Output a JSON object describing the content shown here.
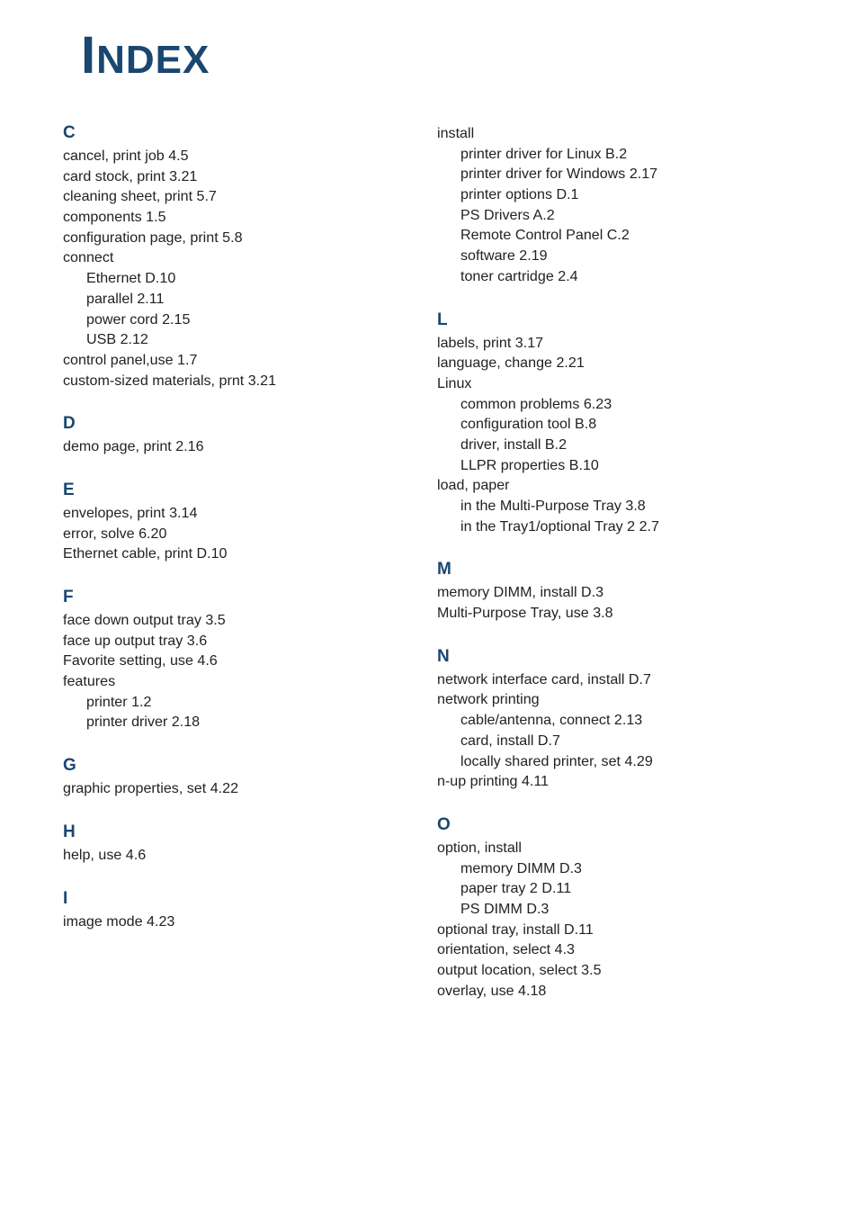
{
  "title_first": "I",
  "title_rest": "NDEX",
  "left": [
    {
      "letter": "C",
      "lines": [
        {
          "cls": "entry-top",
          "t": "cancel, print job 4.5"
        },
        {
          "cls": "entry-top",
          "t": "card stock, print 3.21"
        },
        {
          "cls": "entry-top",
          "t": "cleaning sheet, print 5.7"
        },
        {
          "cls": "entry-top",
          "t": "components 1.5"
        },
        {
          "cls": "entry-top",
          "t": "configuration page, print 5.8"
        },
        {
          "cls": "entry-top",
          "t": "connect"
        },
        {
          "cls": "entry-sub",
          "t": "Ethernet D.10"
        },
        {
          "cls": "entry-sub",
          "t": "parallel 2.11"
        },
        {
          "cls": "entry-sub",
          "t": "power cord 2.15"
        },
        {
          "cls": "entry-sub",
          "t": "USB 2.12"
        },
        {
          "cls": "entry-top",
          "t": "control panel,use 1.7"
        },
        {
          "cls": "entry-top",
          "t": "custom-sized materials, prnt 3.21"
        }
      ]
    },
    {
      "letter": "D",
      "lines": [
        {
          "cls": "entry-top",
          "t": "demo page, print 2.16"
        }
      ]
    },
    {
      "letter": "E",
      "lines": [
        {
          "cls": "entry-top",
          "t": "envelopes, print 3.14"
        },
        {
          "cls": "entry-top",
          "t": "error, solve 6.20"
        },
        {
          "cls": "entry-top",
          "t": "Ethernet cable, print D.10"
        }
      ]
    },
    {
      "letter": "F",
      "lines": [
        {
          "cls": "entry-top",
          "t": "face down output tray 3.5"
        },
        {
          "cls": "entry-top",
          "t": "face up output tray 3.6"
        },
        {
          "cls": "entry-top",
          "t": "Favorite setting, use 4.6"
        },
        {
          "cls": "entry-top",
          "t": "features"
        },
        {
          "cls": "entry-sub",
          "t": "printer 1.2"
        },
        {
          "cls": "entry-sub",
          "t": "printer driver 2.18"
        }
      ]
    },
    {
      "letter": "G",
      "lines": [
        {
          "cls": "entry-top",
          "t": "graphic properties, set 4.22"
        }
      ]
    },
    {
      "letter": "H",
      "lines": [
        {
          "cls": "entry-top",
          "t": "help, use 4.6"
        }
      ]
    },
    {
      "letter": "I",
      "lines": [
        {
          "cls": "entry-top",
          "t": "image mode 4.23"
        }
      ]
    }
  ],
  "right": [
    {
      "letter": "",
      "lines": [
        {
          "cls": "entry-top",
          "t": "install"
        },
        {
          "cls": "entry-sub",
          "t": "printer driver for Linux B.2"
        },
        {
          "cls": "entry-sub",
          "t": "printer driver for Windows 2.17"
        },
        {
          "cls": "entry-sub",
          "t": "printer options D.1"
        },
        {
          "cls": "entry-sub",
          "t": "PS Drivers A.2"
        },
        {
          "cls": "entry-sub",
          "t": "Remote Control Panel C.2"
        },
        {
          "cls": "entry-sub",
          "t": "software 2.19"
        },
        {
          "cls": "entry-sub",
          "t": "toner cartridge 2.4"
        }
      ]
    },
    {
      "letter": "L",
      "lines": [
        {
          "cls": "entry-top",
          "t": "labels, print 3.17"
        },
        {
          "cls": "entry-top",
          "t": "language, change 2.21"
        },
        {
          "cls": "entry-top",
          "t": "Linux"
        },
        {
          "cls": "entry-sub",
          "t": "common problems 6.23"
        },
        {
          "cls": "entry-sub",
          "t": "configuration tool B.8"
        },
        {
          "cls": "entry-sub",
          "t": "driver, install B.2"
        },
        {
          "cls": "entry-sub",
          "t": "LLPR properties B.10"
        },
        {
          "cls": "entry-top",
          "t": "load, paper"
        },
        {
          "cls": "entry-sub",
          "t": "in the Multi-Purpose Tray 3.8"
        },
        {
          "cls": "entry-sub",
          "t": "in the Tray1/optional Tray 2 2.7"
        }
      ]
    },
    {
      "letter": "M",
      "lines": [
        {
          "cls": "entry-top",
          "t": "memory DIMM, install D.3"
        },
        {
          "cls": "entry-top",
          "t": "Multi-Purpose Tray, use 3.8"
        }
      ]
    },
    {
      "letter": "N",
      "lines": [
        {
          "cls": "entry-top",
          "t": "network interface card, install D.7"
        },
        {
          "cls": "entry-top",
          "t": "network printing"
        },
        {
          "cls": "entry-sub",
          "t": "cable/antenna, connect 2.13"
        },
        {
          "cls": "entry-sub",
          "t": "card, install D.7"
        },
        {
          "cls": "entry-sub",
          "t": "locally shared printer, set 4.29"
        },
        {
          "cls": "entry-top",
          "t": "n-up printing 4.11"
        }
      ]
    },
    {
      "letter": "O",
      "lines": [
        {
          "cls": "entry-top",
          "t": "option, install"
        },
        {
          "cls": "entry-sub",
          "t": "memory DIMM D.3"
        },
        {
          "cls": "entry-sub",
          "t": "paper tray 2 D.11"
        },
        {
          "cls": "entry-sub",
          "t": "PS DIMM D.3"
        },
        {
          "cls": "entry-top",
          "t": "optional tray, install D.11"
        },
        {
          "cls": "entry-top",
          "t": "orientation, select 4.3"
        },
        {
          "cls": "entry-top",
          "t": "output location, select 3.5"
        },
        {
          "cls": "entry-top",
          "t": "overlay, use 4.18"
        }
      ]
    }
  ]
}
